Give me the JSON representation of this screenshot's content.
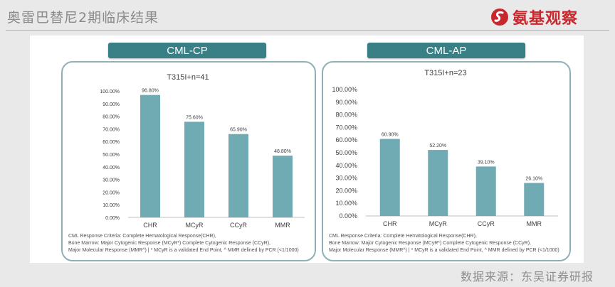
{
  "header": {
    "title": "奥雷巴替尼2期临床结果",
    "brand_text": "氨基观察"
  },
  "footer": {
    "source": "数据来源：东吴证券研报"
  },
  "colors": {
    "tab": "#387f86",
    "bar": "#70aab2",
    "border": "#8fb0b6",
    "brand": "#c8282d"
  },
  "panels": [
    {
      "tab_label": "CML-CP"
    },
    {
      "tab_label": "CML-AP"
    }
  ],
  "chart_data": [
    {
      "type": "bar",
      "title": "T315I+n=41",
      "categories": [
        "CHR",
        "MCyR",
        "CCyR",
        "MMR"
      ],
      "values": [
        96.8,
        75.6,
        65.9,
        48.8
      ],
      "value_labels": [
        "96.80%",
        "75.60%",
        "65.90%",
        "48.80%"
      ],
      "ylim": [
        0,
        100
      ],
      "yticks": [
        "0.00%",
        "10.00%",
        "20.00%",
        "30.00%",
        "40.00%",
        "50.00%",
        "60.00%",
        "70.00%",
        "80.00%",
        "90.00%",
        "100.00%"
      ],
      "grid": false,
      "notes": [
        "CML Response Criteria: Complete Hematological Response(CHR),",
        "Bone Marrow: Major Cytogenic Response (MCyR*) Complete Cytogenic Response (CCyR),",
        "Major Molecular Response (MMR^) | * MCyR is a validated End Point, ^ MMR defined by PCR (<1/1000)"
      ]
    },
    {
      "type": "bar",
      "title": "T315I+n=23",
      "categories": [
        "CHR",
        "MCyR",
        "CCyR",
        "MMR"
      ],
      "values": [
        60.9,
        52.2,
        39.1,
        26.1
      ],
      "value_labels": [
        "60.90%",
        "52.20%",
        "39.10%",
        "26.10%"
      ],
      "ylim": [
        0,
        100
      ],
      "yticks": [
        "0.00%",
        "10.00%",
        "20.00%",
        "30.00%",
        "40.00%",
        "50.00%",
        "60.00%",
        "70.00%",
        "80.00%",
        "90.00%",
        "100.00%"
      ],
      "grid": false,
      "notes": [
        "CML Response Criteria: Complete Hematological Response(CHR),",
        "Bone Marrow: Major Cytogenic Response (MCyR*) Complete Cytogenic Response (CCyR),",
        "Major Molecular Response (MMR^) | * MCyR is a validated End Point, ^ MMR defined by PCR (<1/1000)"
      ]
    }
  ]
}
